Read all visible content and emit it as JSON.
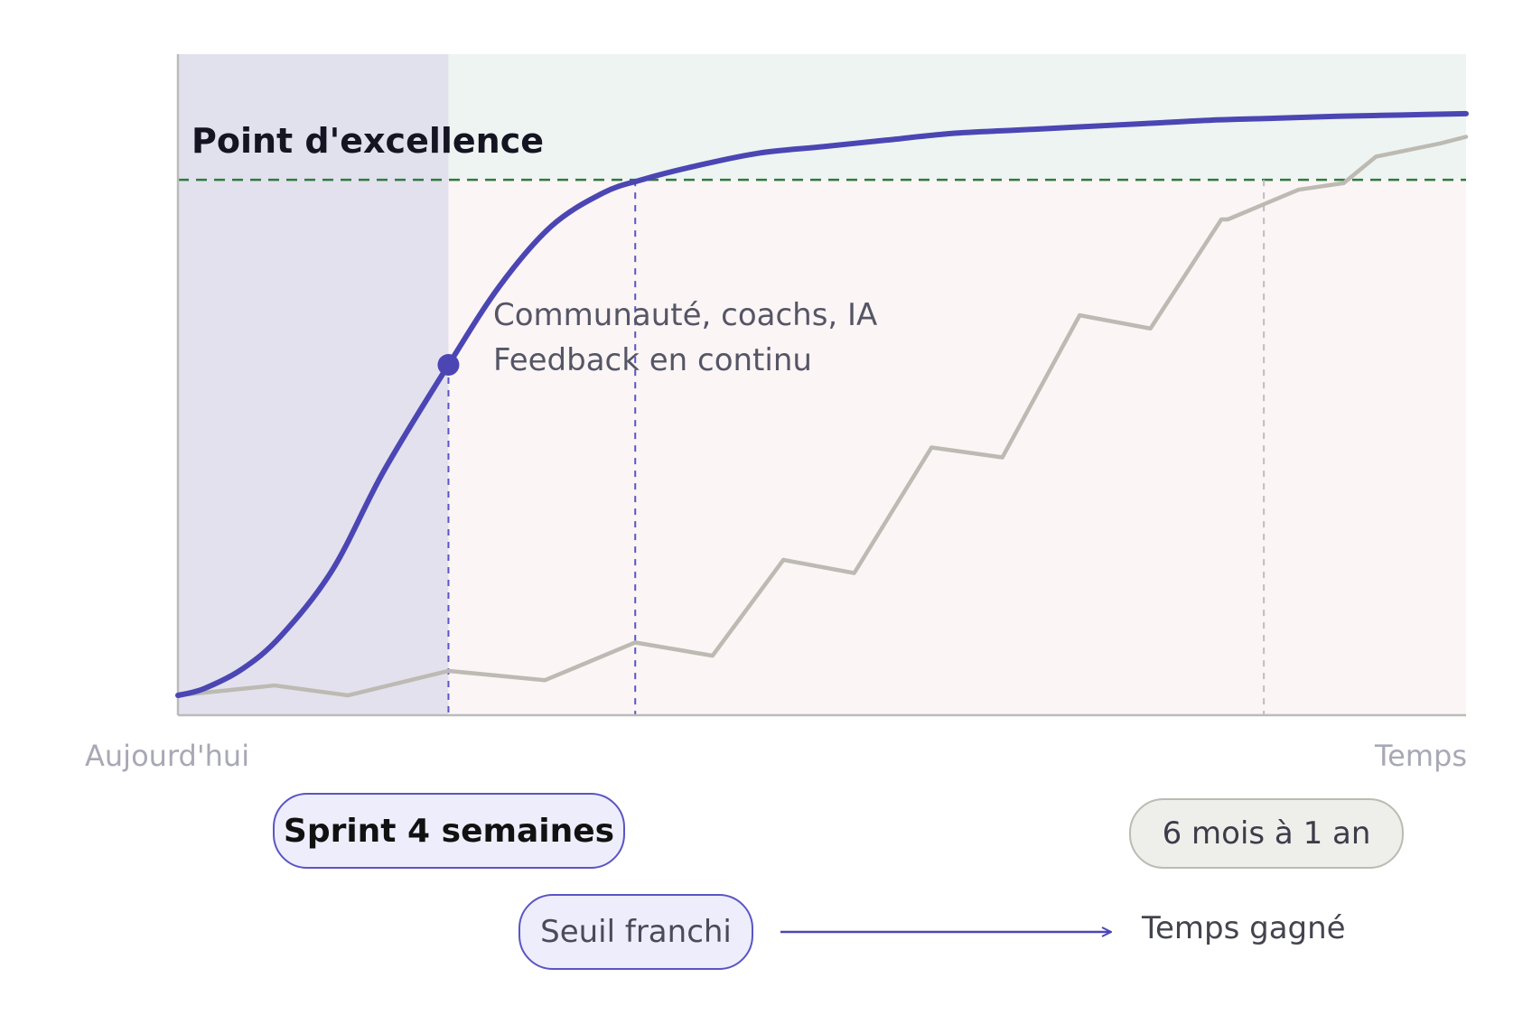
{
  "chart_data": {
    "type": "line",
    "title": "",
    "xlabel": "",
    "ylabel": "",
    "x_axis": {
      "start_label": "Aujourd'hui",
      "end_label": "Temps"
    },
    "xlim": [
      0,
      100
    ],
    "ylim": [
      0,
      100
    ],
    "grid": false,
    "threshold": {
      "label": "Point d'excellence",
      "y": 81
    },
    "highlight_range": {
      "x_start": 0,
      "x_end": 21
    },
    "series": [
      {
        "key": "sprint",
        "color": "#4b46b4",
        "x": [
          0,
          2,
          5,
          8,
          12,
          16,
          21,
          25,
          29,
          33,
          36,
          40,
          45,
          50,
          55,
          60,
          65,
          70,
          75,
          80,
          85,
          90,
          95,
          100
        ],
        "y": [
          3,
          4,
          7,
          12,
          22,
          37,
          53,
          65,
          74,
          79,
          81,
          83,
          85,
          86,
          87,
          88,
          88.5,
          89,
          89.5,
          90,
          90.3,
          90.6,
          90.8,
          91
        ]
      },
      {
        "key": "classic",
        "color": "#bcbab2",
        "x": [
          0,
          7.5,
          13.2,
          21,
          28.5,
          35.5,
          41.5,
          47,
          52.5,
          58.5,
          64,
          70,
          75.5,
          81,
          81.5,
          87,
          90.5,
          93,
          98,
          100
        ],
        "y": [
          3,
          4.5,
          3,
          6.7,
          5.3,
          11,
          9,
          23.5,
          21.5,
          40.5,
          39,
          60.5,
          58.5,
          75,
          75,
          79.5,
          80.5,
          84.5,
          86.5,
          87.5
        ]
      }
    ],
    "markers": [
      {
        "series": "sprint",
        "x": 21,
        "y": 53
      }
    ],
    "guide_lines": [
      {
        "x": 21,
        "y_top": 53,
        "color": "#5a55c4"
      },
      {
        "x": 35.5,
        "y_top": 81,
        "color": "#5a55c4"
      },
      {
        "x": 84.3,
        "y_top": 81,
        "color": "#c4bcbc"
      }
    ],
    "annotations": [
      "Communauté, coachs, IA",
      "Feedback en continu"
    ]
  },
  "labels": {
    "sprint": "Sprint 4 semaines",
    "duration": "6 mois à 1 an",
    "threshold_crossed": "Seuil franchi",
    "time_gained": "Temps gagné"
  },
  "colors": {
    "accent": "#4b46b4",
    "excellence_zone": "#eef4f1",
    "below_zone": "#fbf5f5",
    "sprint_zone": "#ddddec",
    "threshold_line": "#2f7a3e",
    "classic_curve": "#bcbab2",
    "axis": "#bbbbbb"
  }
}
